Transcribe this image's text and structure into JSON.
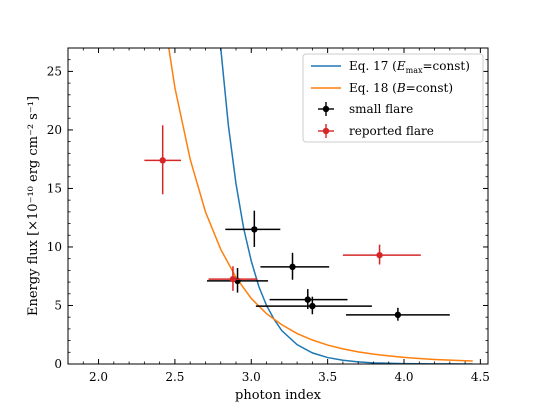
{
  "chart_data": {
    "type": "scatter",
    "xlabel": "photon index",
    "ylabel": "Energy flux [×10⁻¹⁰ erg cm⁻² s⁻¹]",
    "xlim": [
      1.8,
      4.55
    ],
    "ylim": [
      0,
      27
    ],
    "x_ticks": [
      2.0,
      2.5,
      3.0,
      3.5,
      4.0,
      4.5
    ],
    "x_tick_labels": [
      "2.0",
      "2.5",
      "3.0",
      "3.5",
      "4.0",
      "4.5"
    ],
    "y_ticks": [
      0,
      5,
      10,
      15,
      20,
      25
    ],
    "y_tick_labels": [
      "0",
      "5",
      "10",
      "15",
      "20",
      "25"
    ],
    "grid": false,
    "legend_position": "top-right",
    "legend": [
      {
        "label": "Eq. 17 (E_max=const)",
        "kind": "line",
        "color": "#1f77b4"
      },
      {
        "label": "Eq. 18 (B=const)",
        "kind": "line",
        "color": "#ff7f0e"
      },
      {
        "label": "small flare",
        "kind": "errorbar",
        "color": "#000000"
      },
      {
        "label": "reported flare",
        "kind": "errorbar",
        "color": "#d62728"
      }
    ],
    "series": [
      {
        "name": "Eq. 17 (E_max=const)",
        "kind": "line",
        "color": "#1f77b4",
        "x": [
          2.8,
          2.85,
          2.9,
          2.95,
          3.0,
          3.05,
          3.1,
          3.15,
          3.2,
          3.3,
          3.4,
          3.5,
          3.6,
          3.7,
          3.8,
          3.9,
          4.0,
          4.1,
          4.2,
          4.3,
          4.4,
          4.45
        ],
        "y": [
          27.0,
          20.4,
          15.4,
          11.6,
          8.8,
          6.6,
          5.0,
          3.8,
          2.85,
          1.65,
          0.95,
          0.55,
          0.32,
          0.18,
          0.1,
          0.06,
          0.035,
          0.02,
          0.012,
          0.007,
          0.004,
          0.003
        ]
      },
      {
        "name": "Eq. 18 (B=const)",
        "kind": "line",
        "color": "#ff7f0e",
        "x": [
          2.46,
          2.5,
          2.6,
          2.7,
          2.8,
          2.9,
          3.0,
          3.1,
          3.2,
          3.3,
          3.4,
          3.5,
          3.6,
          3.7,
          3.8,
          3.9,
          4.0,
          4.1,
          4.2,
          4.3,
          4.4,
          4.45
        ],
        "y": [
          27.0,
          23.6,
          17.5,
          13.0,
          9.8,
          7.4,
          5.6,
          4.3,
          3.35,
          2.6,
          2.05,
          1.62,
          1.29,
          1.04,
          0.84,
          0.69,
          0.57,
          0.47,
          0.39,
          0.33,
          0.28,
          0.26
        ]
      },
      {
        "name": "small flare",
        "kind": "errorbar",
        "color": "#000000",
        "points": [
          {
            "x": 3.02,
            "y": 11.5,
            "xerr": [
              0.19,
              0.17
            ],
            "yerr": [
              1.5,
              1.6
            ]
          },
          {
            "x": 3.27,
            "y": 8.3,
            "xerr": [
              0.21,
              0.24
            ],
            "yerr": [
              1.1,
              1.2
            ]
          },
          {
            "x": 2.91,
            "y": 7.1,
            "xerr": [
              0.2,
              0.2
            ],
            "yerr": [
              1.0,
              1.1
            ]
          },
          {
            "x": 3.37,
            "y": 5.5,
            "xerr": [
              0.25,
              0.26
            ],
            "yerr": [
              0.8,
              0.9
            ]
          },
          {
            "x": 3.4,
            "y": 4.95,
            "xerr": [
              0.37,
              0.39
            ],
            "yerr": [
              0.7,
              0.8
            ]
          },
          {
            "x": 3.96,
            "y": 4.2,
            "xerr": [
              0.34,
              0.34
            ],
            "yerr": [
              0.5,
              0.6
            ]
          }
        ]
      },
      {
        "name": "reported flare",
        "kind": "errorbar",
        "color": "#d62728",
        "points": [
          {
            "x": 2.42,
            "y": 17.4,
            "xerr": [
              0.12,
              0.12
            ],
            "yerr": [
              2.9,
              3.0
            ]
          },
          {
            "x": 2.88,
            "y": 7.25,
            "xerr": [
              0.16,
              0.16
            ],
            "yerr": [
              1.0,
              1.1
            ]
          },
          {
            "x": 3.84,
            "y": 9.3,
            "xerr": [
              0.24,
              0.27
            ],
            "yerr": [
              0.8,
              0.9
            ]
          }
        ]
      }
    ]
  }
}
